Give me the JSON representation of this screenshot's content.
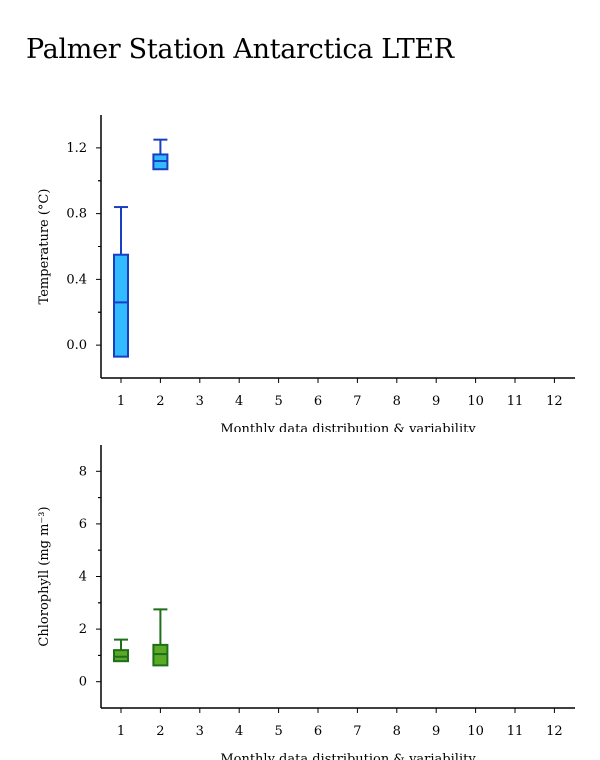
{
  "page": {
    "title": "Palmer Station Antarctica LTER"
  },
  "chart_data": [
    {
      "type": "box",
      "ylabel": "Temperature (°C)",
      "xlabel": "Monthly data distribution & variability",
      "categories": [
        "1",
        "2",
        "3",
        "4",
        "5",
        "6",
        "7",
        "8",
        "9",
        "10",
        "11",
        "12"
      ],
      "yticks": [
        "0.0",
        "0.4",
        "0.8",
        "1.2"
      ],
      "ylim": [
        -0.2,
        1.4
      ],
      "colors": {
        "fill": "#33bbff",
        "stroke": "#1a3ec2"
      },
      "boxes": [
        {
          "month": 1,
          "whisker_low": -0.07,
          "q1": -0.07,
          "median": 0.26,
          "q3": 0.55,
          "whisker_high": 0.84
        },
        {
          "month": 2,
          "whisker_low": 1.07,
          "q1": 1.07,
          "median": 1.12,
          "q3": 1.16,
          "whisker_high": 1.25
        }
      ]
    },
    {
      "type": "box",
      "ylabel": "Chlorophyll (mg m⁻³)",
      "xlabel": "Monthly data distribution & variability",
      "categories": [
        "1",
        "2",
        "3",
        "4",
        "5",
        "6",
        "7",
        "8",
        "9",
        "10",
        "11",
        "12"
      ],
      "yticks": [
        "0",
        "2",
        "4",
        "6",
        "8"
      ],
      "ylim": [
        -1,
        9
      ],
      "colors": {
        "fill": "#5aaa28",
        "stroke": "#1f6e1a"
      },
      "boxes": [
        {
          "month": 1,
          "whisker_low": 0.78,
          "q1": 0.78,
          "median": 0.95,
          "q3": 1.2,
          "whisker_high": 1.6
        },
        {
          "month": 2,
          "whisker_low": 0.62,
          "q1": 0.62,
          "median": 1.05,
          "q3": 1.4,
          "whisker_high": 2.75
        }
      ]
    }
  ]
}
